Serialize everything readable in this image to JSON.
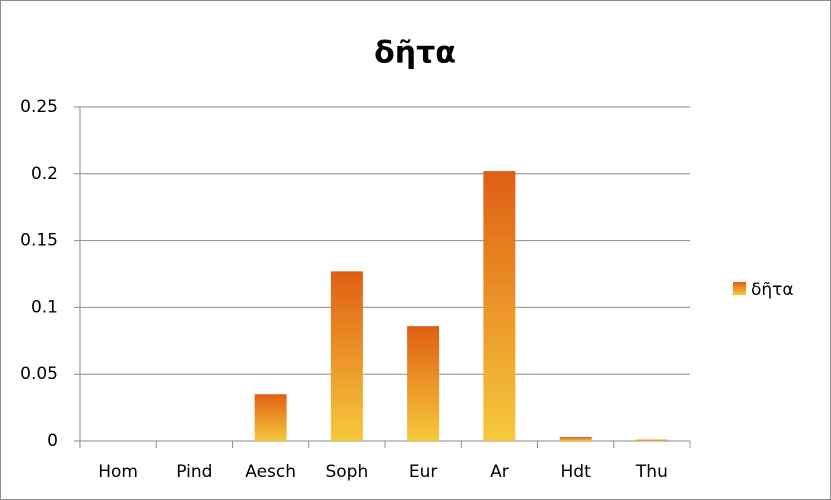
{
  "chart_data": {
    "type": "bar",
    "title": "δῆτα",
    "categories": [
      "Hom",
      "Pind",
      "Aesch",
      "Soph",
      "Eur",
      "Ar",
      "Hdt",
      "Thu"
    ],
    "series": [
      {
        "name": "δῆτα",
        "color": "#df5f14",
        "values": [
          0,
          0,
          0.035,
          0.127,
          0.086,
          0.202,
          0.003,
          0.001
        ]
      }
    ],
    "ylim": [
      0,
      0.25
    ],
    "yticks": [
      0,
      0.05,
      0.1,
      0.15,
      0.2,
      0.25
    ],
    "grid": true,
    "legend": "right"
  }
}
